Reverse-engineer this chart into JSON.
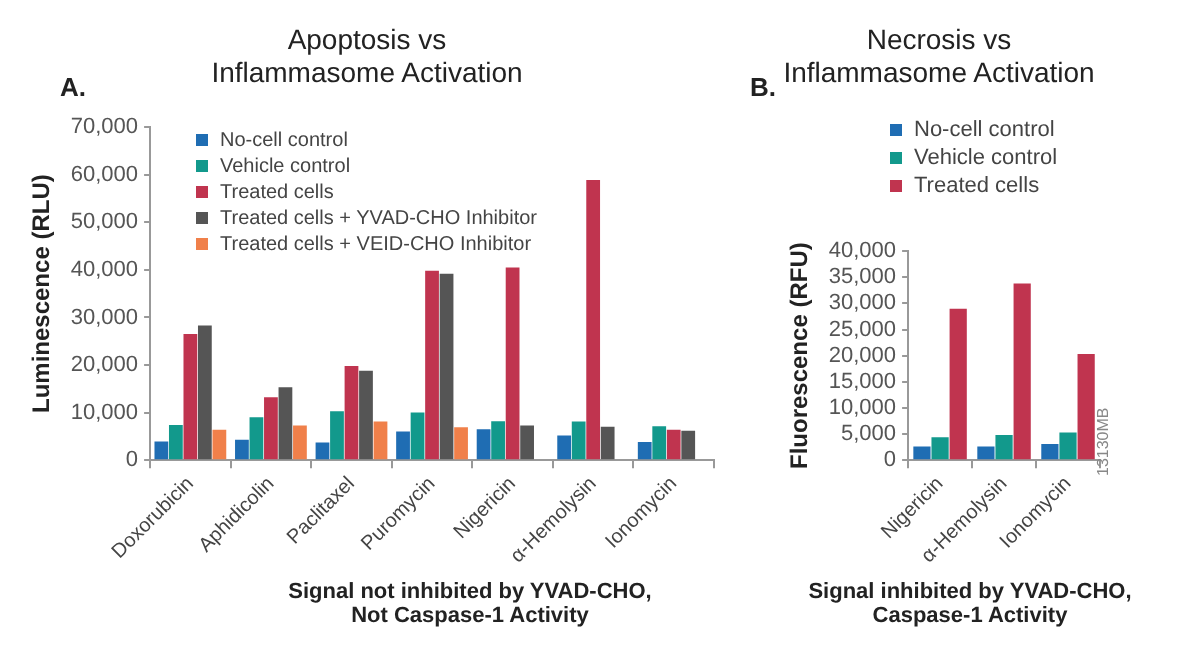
{
  "chart_data": [
    {
      "type": "bar",
      "title": "Apoptosis vs\nInflammasome Activation",
      "xlabel": "Signal not inhibited by YVAD-CHO,\nNot Caspase-1 Activity",
      "ylabel": "Luminescence (RLU)",
      "annotations": [
        "A."
      ],
      "categories": [
        "Doxorubicin",
        "Aphidicolin",
        "Paclitaxel",
        "Puromycin",
        "Nigericin",
        "α-Hemolysin",
        "Ionomycin"
      ],
      "ylim": [
        0,
        70000
      ],
      "yticks": [
        {
          "value": 0,
          "label": "0"
        },
        {
          "value": 10000,
          "label": "10,000"
        },
        {
          "value": 20000,
          "label": "20,000"
        },
        {
          "value": 30000,
          "label": "30,000"
        },
        {
          "value": 40000,
          "label": "40,000"
        },
        {
          "value": 50000,
          "label": "50,000"
        },
        {
          "value": 60000,
          "label": "60,000"
        },
        {
          "value": 70000,
          "label": "70,000"
        }
      ],
      "grid": false,
      "legend": "top left",
      "series": [
        {
          "name": "No-cell control",
          "color": "#1f6db3",
          "values": [
            3900,
            4300,
            3700,
            6000,
            6500,
            5200,
            3800
          ]
        },
        {
          "name": "Vehicle control",
          "color": "#12998c",
          "values": [
            7400,
            9000,
            10300,
            10000,
            8200,
            8100,
            7100
          ]
        },
        {
          "name": "Treated cells",
          "color": "#c0344f",
          "values": [
            26500,
            13200,
            19800,
            39800,
            40500,
            58900,
            6400
          ]
        },
        {
          "name": "Treated cells + YVAD-CHO Inhibitor",
          "color": "#555555",
          "values": [
            28300,
            15300,
            18800,
            39200,
            7300,
            7000,
            6200
          ]
        },
        {
          "name": "Treated cells + VEID-CHO Inhibitor",
          "color": "#f0804a",
          "values": [
            6400,
            7300,
            8100,
            6900,
            null,
            null,
            null
          ]
        }
      ]
    },
    {
      "type": "bar",
      "title": "Necrosis vs\nInflammasome Activation",
      "xlabel": "Signal inhibited by YVAD-CHO,\nCaspase-1 Activity",
      "ylabel": "Fluorescence (RFU)",
      "annotations": [
        "B.",
        "13130MB"
      ],
      "categories": [
        "Nigericin",
        "α-Hemolysin",
        "Ionomycin"
      ],
      "ylim": [
        0,
        40000
      ],
      "yticks": [
        {
          "value": 0,
          "label": "0"
        },
        {
          "value": 5000,
          "label": "5,000"
        },
        {
          "value": 10000,
          "label": "10,000"
        },
        {
          "value": 15000,
          "label": "15,000"
        },
        {
          "value": 20000,
          "label": "20,000"
        },
        {
          "value": 25000,
          "label": "25,000"
        },
        {
          "value": 30000,
          "label": "30,000"
        },
        {
          "value": 35000,
          "label": "35,000"
        },
        {
          "value": 40000,
          "label": "40,000"
        }
      ],
      "grid": false,
      "legend": "top",
      "series": [
        {
          "name": "No-cell control",
          "color": "#1f6db3",
          "values": [
            2600,
            2600,
            3100
          ]
        },
        {
          "name": "Vehicle control",
          "color": "#12998c",
          "values": [
            4400,
            4800,
            5300
          ]
        },
        {
          "name": "Treated cells",
          "color": "#c0344f",
          "values": [
            29000,
            33800,
            20300
          ]
        }
      ]
    }
  ]
}
